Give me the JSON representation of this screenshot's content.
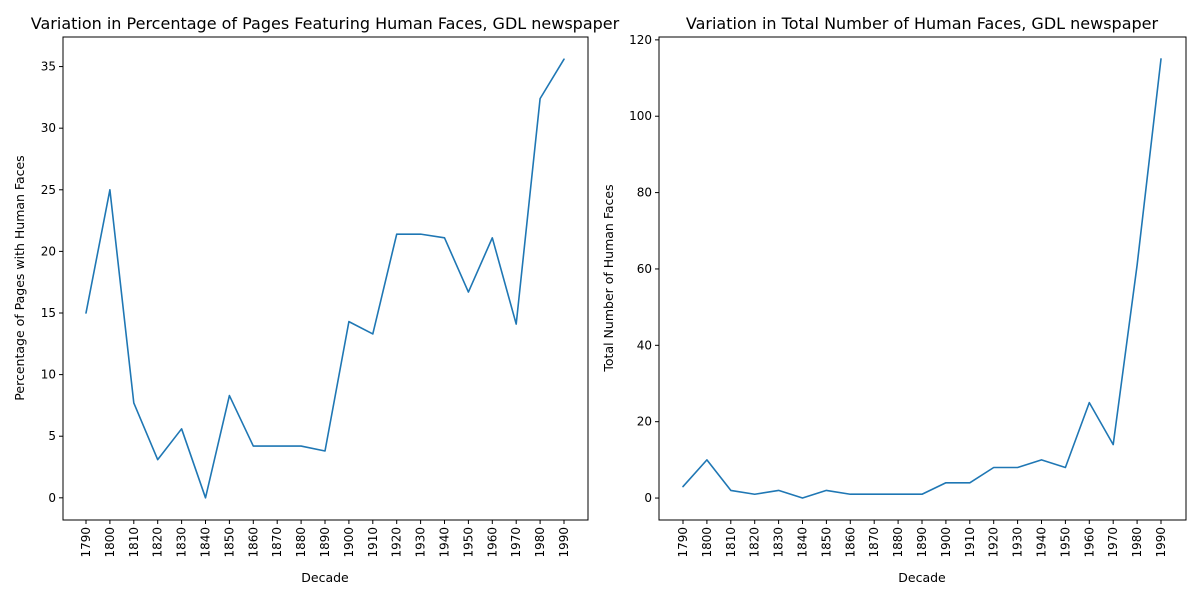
{
  "chart_data": [
    {
      "type": "line",
      "title": "Variation in Percentage of Pages Featuring Human Faces, GDL newspaper",
      "xlabel": "Decade",
      "ylabel": "Percentage of Pages with Human Faces",
      "x": [
        "1790",
        "1800",
        "1810",
        "1820",
        "1830",
        "1840",
        "1850",
        "1860",
        "1870",
        "1880",
        "1890",
        "1900",
        "1910",
        "1920",
        "1930",
        "1940",
        "1950",
        "1960",
        "1970",
        "1980",
        "1990"
      ],
      "series": [
        {
          "values": [
            15.0,
            25.0,
            7.7,
            3.1,
            5.6,
            0.0,
            8.3,
            4.2,
            4.2,
            4.2,
            3.8,
            14.3,
            13.3,
            21.4,
            21.4,
            21.1,
            16.7,
            21.1,
            14.1,
            32.4,
            35.6
          ]
        }
      ],
      "ylim": [
        -1.8,
        37.4
      ],
      "yticks": [
        0,
        5,
        10,
        15,
        20,
        25,
        30,
        35
      ],
      "ytick_labels": [
        "0",
        "5",
        "10",
        "15",
        "20",
        "25",
        "30",
        "35"
      ],
      "color": "#1f77b4",
      "grid": false
    },
    {
      "type": "line",
      "title": "Variation in Total Number of Human Faces, GDL newspaper",
      "xlabel": "Decade",
      "ylabel": "Total Number of Human Faces",
      "x": [
        "1790",
        "1800",
        "1810",
        "1820",
        "1830",
        "1840",
        "1850",
        "1860",
        "1870",
        "1880",
        "1890",
        "1900",
        "1910",
        "1920",
        "1930",
        "1940",
        "1950",
        "1960",
        "1970",
        "1980",
        "1990"
      ],
      "series": [
        {
          "values": [
            3,
            10,
            2,
            1,
            2,
            0,
            2,
            1,
            1,
            1,
            1,
            4,
            4,
            8,
            8,
            10,
            8,
            25,
            14,
            61,
            115
          ]
        }
      ],
      "ylim": [
        -5.75,
        120.75
      ],
      "yticks": [
        0,
        20,
        40,
        60,
        80,
        100,
        120
      ],
      "ytick_labels": [
        "0",
        "20",
        "40",
        "60",
        "80",
        "100",
        "120"
      ],
      "color": "#1f77b4",
      "grid": false
    }
  ]
}
